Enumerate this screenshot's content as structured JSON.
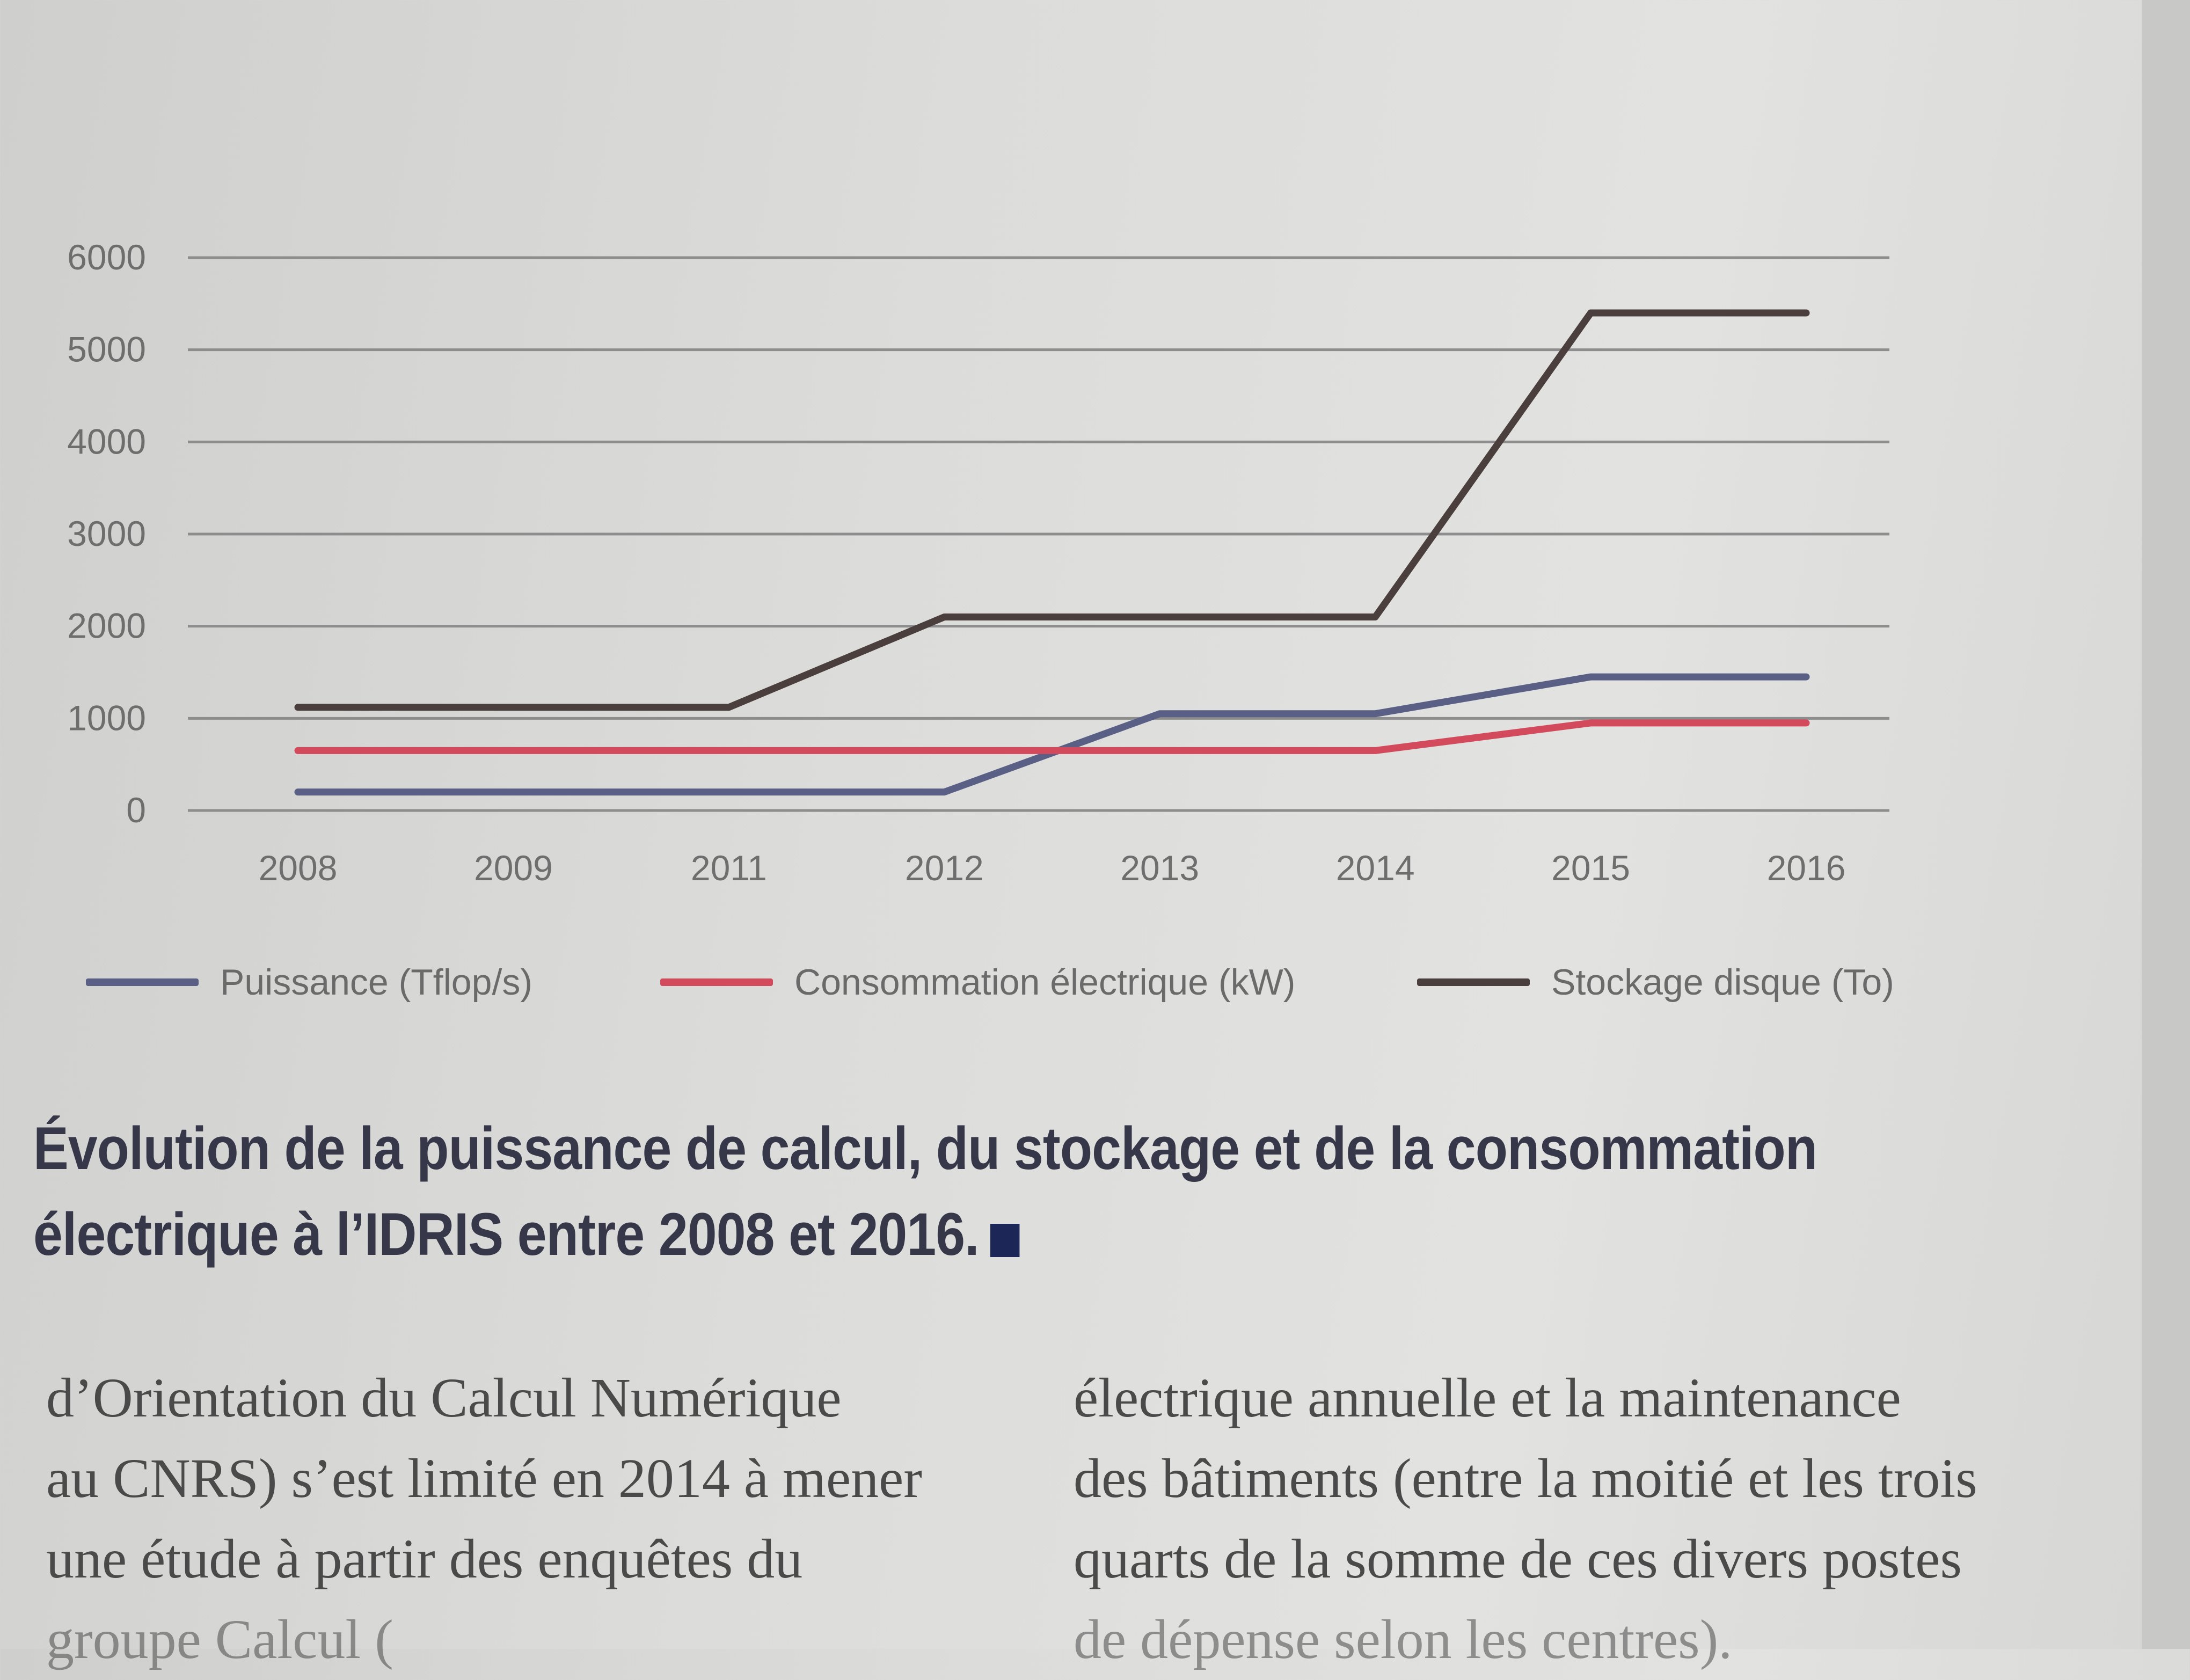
{
  "chart_data": {
    "type": "line",
    "categories": [
      "2008",
      "2009",
      "2011",
      "2012",
      "2013",
      "2014",
      "2015",
      "2016"
    ],
    "y_ticks": [
      "0",
      "1000",
      "2000",
      "3000",
      "4000",
      "5000",
      "6000"
    ],
    "ylim": [
      0,
      6000
    ],
    "grid": true,
    "legend_position": "bottom",
    "series": [
      {
        "name": "Puissance (Tflop/s)",
        "color": "#5a5f86",
        "values": [
          200,
          200,
          200,
          200,
          1050,
          1050,
          1450,
          1450
        ]
      },
      {
        "name": "Consommation électrique (kW)",
        "color": "#d24a5c",
        "values": [
          650,
          650,
          650,
          650,
          650,
          650,
          950,
          950
        ]
      },
      {
        "name": "Stockage disque (To)",
        "color": "#4a3f3d",
        "values": [
          1120,
          1120,
          1120,
          2100,
          2100,
          2100,
          5400,
          5400
        ]
      }
    ]
  },
  "caption": {
    "line1": "Évolution de la puissance de calcul, du stockage et de la consommation",
    "line2": "électrique à l’IDRIS entre 2008 et 2016."
  },
  "body_text": {
    "left": [
      "d’Orientation du Calcul Numérique",
      "au CNRS) s’est limité en 2014 à mener",
      "une étude à partir des enquêtes du",
      "groupe Calcul ("
    ],
    "right": [
      "électrique annuelle et la maintenance",
      "des bâtiments (entre la moitié et les trois",
      "quarts de la somme de ces divers postes",
      "de dépense selon les centres)."
    ]
  }
}
